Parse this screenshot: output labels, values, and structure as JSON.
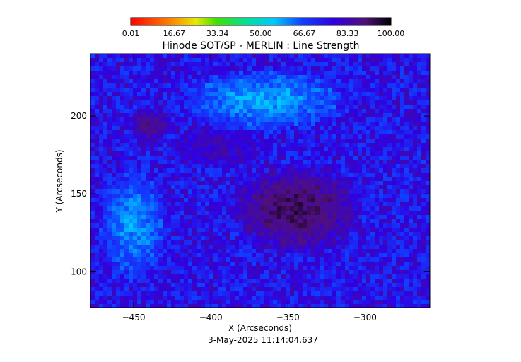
{
  "chart_data": {
    "type": "heatmap",
    "title": "Hinode SOT/SP - MERLIN : Line Strength",
    "xlabel": "X (Arcseconds)",
    "ylabel": "Y (Arcseconds)",
    "x_ticks": [
      -450,
      -400,
      -350,
      -300
    ],
    "x_tick_labels": [
      "−450",
      "−400",
      "−350",
      "−300"
    ],
    "y_ticks": [
      100,
      150,
      200
    ],
    "y_tick_labels": [
      "100",
      "150",
      "200"
    ],
    "xlim": [
      -478,
      -258
    ],
    "ylim": [
      77,
      240
    ],
    "colorbar": {
      "min": 0.01,
      "max": 100.0,
      "tick_values": [
        0.01,
        16.67,
        33.34,
        50.0,
        66.67,
        83.33,
        100.0
      ],
      "tick_labels": [
        "0.01",
        "16.67",
        "33.34",
        "50.00",
        "66.67",
        "83.33",
        "100.00"
      ],
      "colormap": "rainbow (red-yellow-green-cyan-blue-purple-black)"
    },
    "timestamp": "3-May-2025 11:14:04.637",
    "features": {
      "description_regions": [
        {
          "kind": "sunspot",
          "center": [
            -345,
            140
          ],
          "radius": [
            45,
            30
          ],
          "level": 92
        },
        {
          "kind": "penumbra-fragment",
          "center": [
            -440,
            195
          ],
          "radius": [
            16,
            12
          ],
          "level": 88
        },
        {
          "kind": "pore-cluster",
          "center": [
            -395,
            180
          ],
          "radius": [
            35,
            15
          ],
          "level": 82
        },
        {
          "kind": "plage",
          "center": [
            -365,
            210
          ],
          "radius": [
            60,
            22
          ],
          "level": 58
        },
        {
          "kind": "plage",
          "center": [
            -450,
            130
          ],
          "radius": [
            25,
            40
          ],
          "level": 60
        }
      ],
      "background_level": 75
    }
  }
}
